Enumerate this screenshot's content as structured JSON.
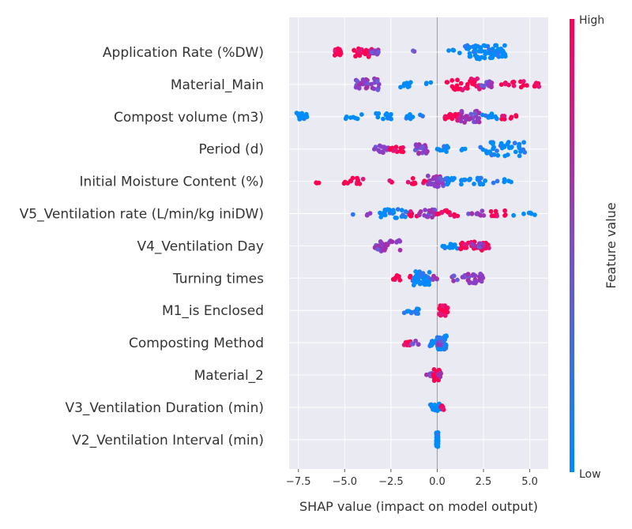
{
  "chart_data": {
    "type": "scatter",
    "subtype": "shap-beeswarm",
    "xlabel": "SHAP value (impact on model output)",
    "xlim": [
      -8.0,
      6.0
    ],
    "xticks": [
      -7.5,
      -5.0,
      -2.5,
      0.0,
      2.5,
      5.0
    ],
    "xtick_labels": [
      "−7.5",
      "−5.0",
      "−2.5",
      "0.0",
      "2.5",
      "5.0"
    ],
    "grid": true,
    "colorbar": {
      "label": "Feature value",
      "high": "High",
      "low": "Low",
      "low_color": "#008bfb",
      "high_color": "#ff0052"
    },
    "features": [
      {
        "name": "Application Rate (%DW)",
        "groups": [
          [
            -5.6,
            -5.2,
            18,
            "high"
          ],
          [
            -4.5,
            -3.5,
            22,
            "high"
          ],
          [
            -3.6,
            -3.0,
            10,
            "mid"
          ],
          [
            -1.4,
            -1.2,
            2,
            "mid"
          ],
          [
            0.5,
            1.5,
            4,
            "low"
          ],
          [
            1.5,
            3.7,
            70,
            "low"
          ]
        ]
      },
      {
        "name": "Material_Main",
        "groups": [
          [
            -4.4,
            -3.1,
            30,
            "mid"
          ],
          [
            -2.0,
            -1.4,
            10,
            "low"
          ],
          [
            -0.6,
            -0.3,
            3,
            "low"
          ],
          [
            0.5,
            2.3,
            30,
            "high"
          ],
          [
            2.3,
            3.0,
            12,
            "mid"
          ],
          [
            3.4,
            4.2,
            8,
            "high"
          ],
          [
            4.4,
            5.6,
            12,
            "high"
          ]
        ]
      },
      {
        "name": "Compost volume (m3)",
        "groups": [
          [
            -7.6,
            -7.0,
            15,
            "low"
          ],
          [
            -5.0,
            -4.0,
            7,
            "low"
          ],
          [
            -3.3,
            -2.2,
            12,
            "low"
          ],
          [
            -1.8,
            -0.6,
            8,
            "low"
          ],
          [
            0.4,
            1.3,
            18,
            "high"
          ],
          [
            1.2,
            2.3,
            30,
            "mid"
          ],
          [
            2.4,
            3.3,
            10,
            "low"
          ],
          [
            3.4,
            4.5,
            8,
            "high"
          ]
        ]
      },
      {
        "name": "Period (d)",
        "groups": [
          [
            -3.4,
            -2.6,
            16,
            "mid"
          ],
          [
            -2.6,
            -1.8,
            14,
            "high"
          ],
          [
            -1.2,
            -0.5,
            24,
            "mid"
          ],
          [
            0.0,
            0.6,
            10,
            "low"
          ],
          [
            1.2,
            1.6,
            3,
            "low"
          ],
          [
            2.2,
            2.5,
            2,
            "low"
          ],
          [
            2.6,
            4.8,
            40,
            "low"
          ]
        ]
      },
      {
        "name": "Initial Moisture Content (%)",
        "groups": [
          [
            -6.6,
            -6.1,
            3,
            "high"
          ],
          [
            -5.1,
            -4.0,
            12,
            "high"
          ],
          [
            -2.8,
            -2.3,
            3,
            "high"
          ],
          [
            -1.6,
            -0.5,
            10,
            "high"
          ],
          [
            -0.5,
            0.5,
            28,
            "mid"
          ],
          [
            0.4,
            1.6,
            16,
            "low"
          ],
          [
            1.6,
            2.6,
            12,
            "low"
          ],
          [
            2.9,
            4.0,
            6,
            "low"
          ]
        ]
      },
      {
        "name": "V5_Ventilation rate (L/min/kg iniDW)",
        "groups": [
          [
            -4.6,
            -4.5,
            1,
            "low"
          ],
          [
            -3.8,
            -3.3,
            3,
            "mid"
          ],
          [
            -3.1,
            -1.6,
            22,
            "low"
          ],
          [
            -1.6,
            -1.0,
            8,
            "high"
          ],
          [
            -1.0,
            0.0,
            18,
            "mid"
          ],
          [
            0.0,
            1.2,
            12,
            "high"
          ],
          [
            1.6,
            2.6,
            10,
            "mid"
          ],
          [
            2.6,
            3.9,
            10,
            "high"
          ],
          [
            4.1,
            5.3,
            6,
            "low"
          ]
        ]
      },
      {
        "name": "V4_Ventilation Day",
        "groups": [
          [
            -3.4,
            -2.0,
            28,
            "mid"
          ],
          [
            0.2,
            1.2,
            12,
            "low"
          ],
          [
            1.2,
            2.0,
            16,
            "high"
          ],
          [
            2.0,
            2.8,
            20,
            "high"
          ],
          [
            1.8,
            2.5,
            8,
            "mid"
          ]
        ]
      },
      {
        "name": "Turning times",
        "groups": [
          [
            -2.4,
            -2.0,
            8,
            "high"
          ],
          [
            -1.6,
            -1.0,
            8,
            "high"
          ],
          [
            -1.3,
            -0.4,
            40,
            "low"
          ],
          [
            -0.4,
            0.0,
            6,
            "mid"
          ],
          [
            0.8,
            1.6,
            10,
            "mid"
          ],
          [
            1.6,
            2.5,
            24,
            "mid"
          ]
        ]
      },
      {
        "name": "M1_is Enclosed",
        "groups": [
          [
            -1.8,
            -1.0,
            12,
            "low"
          ],
          [
            0.1,
            0.6,
            30,
            "high"
          ]
        ]
      },
      {
        "name": "Composting Method",
        "groups": [
          [
            -1.8,
            -1.4,
            7,
            "high"
          ],
          [
            -1.4,
            -1.0,
            5,
            "mid"
          ],
          [
            -0.4,
            0.0,
            14,
            "low"
          ],
          [
            0.0,
            0.5,
            40,
            "low"
          ],
          [
            0.0,
            0.3,
            6,
            "mid"
          ]
        ]
      },
      {
        "name": "Material_2",
        "groups": [
          [
            -0.6,
            -0.3,
            6,
            "mid"
          ],
          [
            -0.2,
            0.2,
            30,
            "high"
          ],
          [
            0.0,
            0.2,
            6,
            "mid"
          ]
        ]
      },
      {
        "name": "V3_Ventilation Duration (min)",
        "groups": [
          [
            -0.4,
            0.0,
            16,
            "low"
          ],
          [
            0.0,
            0.2,
            14,
            "low"
          ],
          [
            0.2,
            0.4,
            8,
            "high"
          ]
        ]
      },
      {
        "name": "V2_Ventilation Interval (min)",
        "groups": [
          [
            -0.05,
            0.05,
            50,
            "low"
          ]
        ]
      }
    ]
  }
}
